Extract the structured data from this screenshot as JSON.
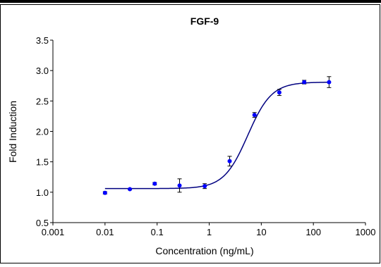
{
  "chart_data": {
    "type": "scatter",
    "title": "FGF-9",
    "xlabel": "Concentration (ng/mL)",
    "ylabel": "Fold Induction",
    "xscale": "log",
    "xlim": [
      0.001,
      1000
    ],
    "ylim": [
      0.5,
      3.5
    ],
    "x_ticks": [
      "0.001",
      "0.01",
      "0.1",
      "1",
      "10",
      "100",
      "1000"
    ],
    "y_ticks": [
      "0.5",
      "1.0",
      "1.5",
      "2.0",
      "2.5",
      "3.0",
      "3.5"
    ],
    "grid": false,
    "legend": "none",
    "marker_color": "#0000ff",
    "curve_color": "#000080",
    "points": [
      {
        "x": 0.01,
        "y": 0.99,
        "err": 0.02
      },
      {
        "x": 0.03,
        "y": 1.05,
        "err": 0.01
      },
      {
        "x": 0.09,
        "y": 1.14,
        "err": 0.02
      },
      {
        "x": 0.27,
        "y": 1.11,
        "err": 0.11
      },
      {
        "x": 0.82,
        "y": 1.1,
        "err": 0.04
      },
      {
        "x": 2.47,
        "y": 1.51,
        "err": 0.08
      },
      {
        "x": 7.4,
        "y": 2.27,
        "err": 0.04
      },
      {
        "x": 22.2,
        "y": 2.64,
        "err": 0.05
      },
      {
        "x": 66.7,
        "y": 2.81,
        "err": 0.03
      },
      {
        "x": 200,
        "y": 2.81,
        "err": 0.09
      }
    ],
    "fit_curve": {
      "bottom": 1.06,
      "top": 2.81,
      "ec50": 5.5,
      "hill": 1.9
    }
  }
}
